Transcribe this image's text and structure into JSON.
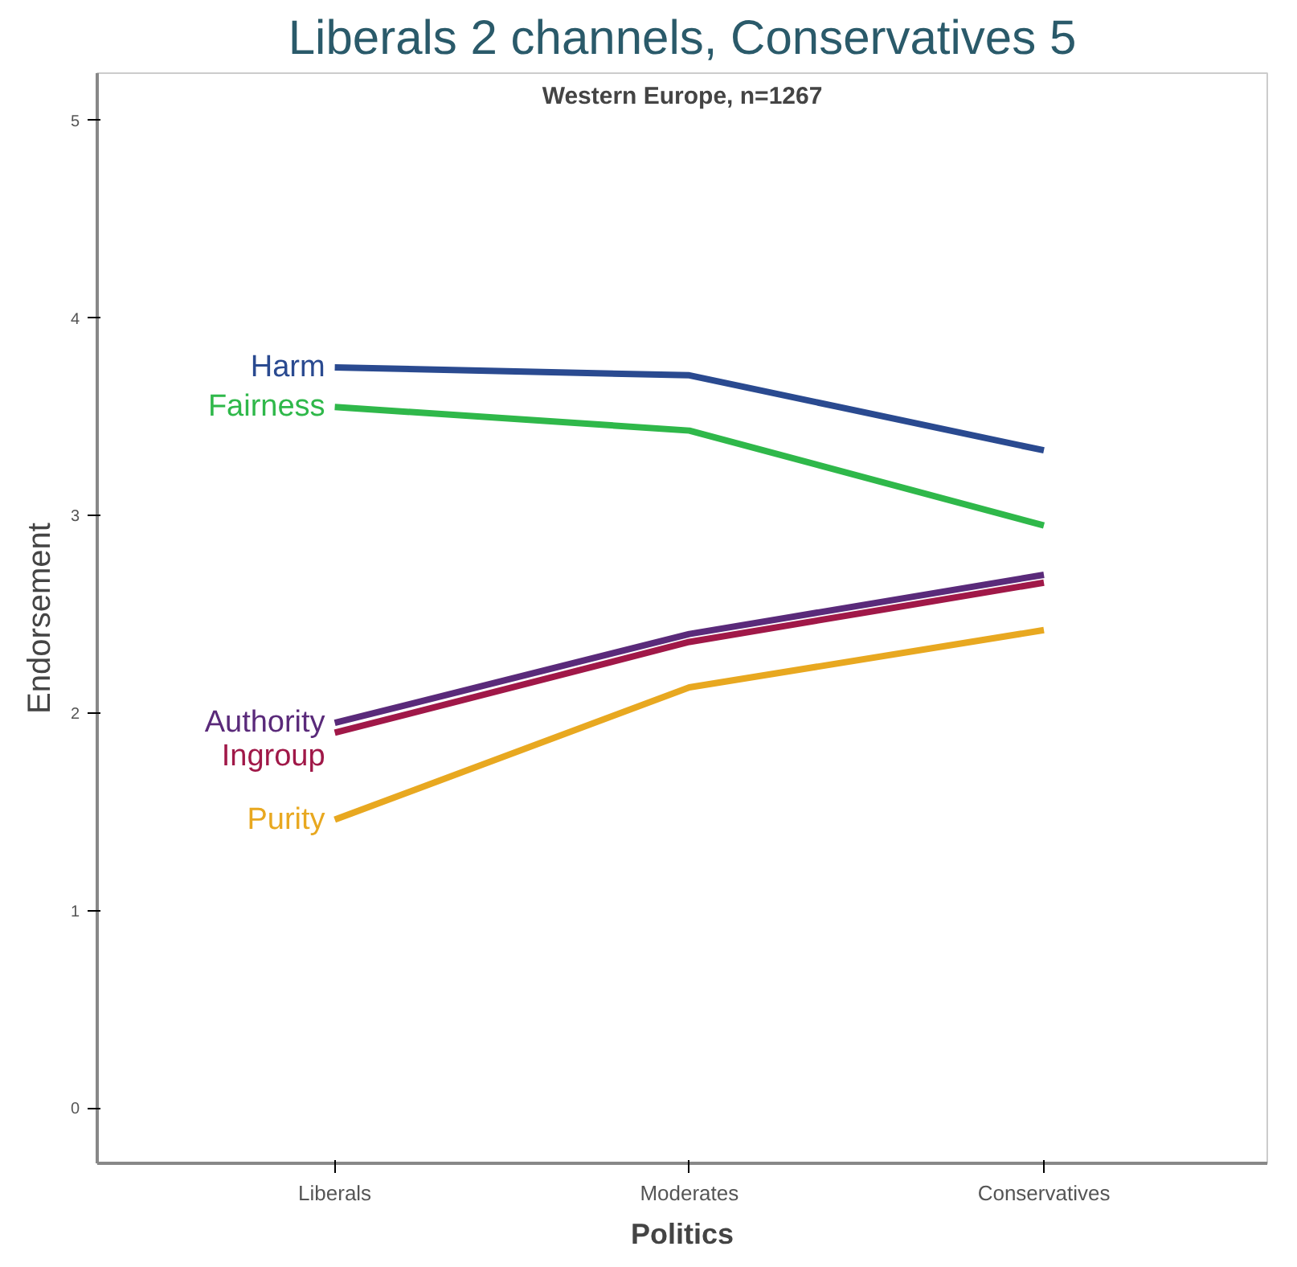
{
  "chart_data": {
    "type": "line",
    "title": "Liberals 2 channels, Conservatives 5",
    "subtitle": "Western Europe, n=1267",
    "xlabel": "Politics",
    "ylabel": "Endorsement",
    "categories": [
      "Liberals",
      "Moderates",
      "Conservatives"
    ],
    "ylim": [
      -0.28,
      5.24
    ],
    "yticks": [
      0,
      1,
      2,
      3,
      4,
      5
    ],
    "grid": false,
    "marker": "none",
    "line_style": "solid",
    "series": [
      {
        "name": "Harm",
        "color": "#2a4a90",
        "values": [
          3.75,
          3.71,
          3.33
        ]
      },
      {
        "name": "Fairness",
        "color": "#2fb84a",
        "values": [
          3.55,
          3.43,
          2.95
        ]
      },
      {
        "name": "Authority",
        "color": "#5a2a7a",
        "values": [
          1.95,
          2.4,
          2.7
        ]
      },
      {
        "name": "Ingroup",
        "color": "#a01848",
        "values": [
          1.9,
          2.36,
          2.66
        ]
      },
      {
        "name": "Purity",
        "color": "#e8a820",
        "values": [
          1.46,
          2.13,
          2.42
        ]
      }
    ]
  }
}
